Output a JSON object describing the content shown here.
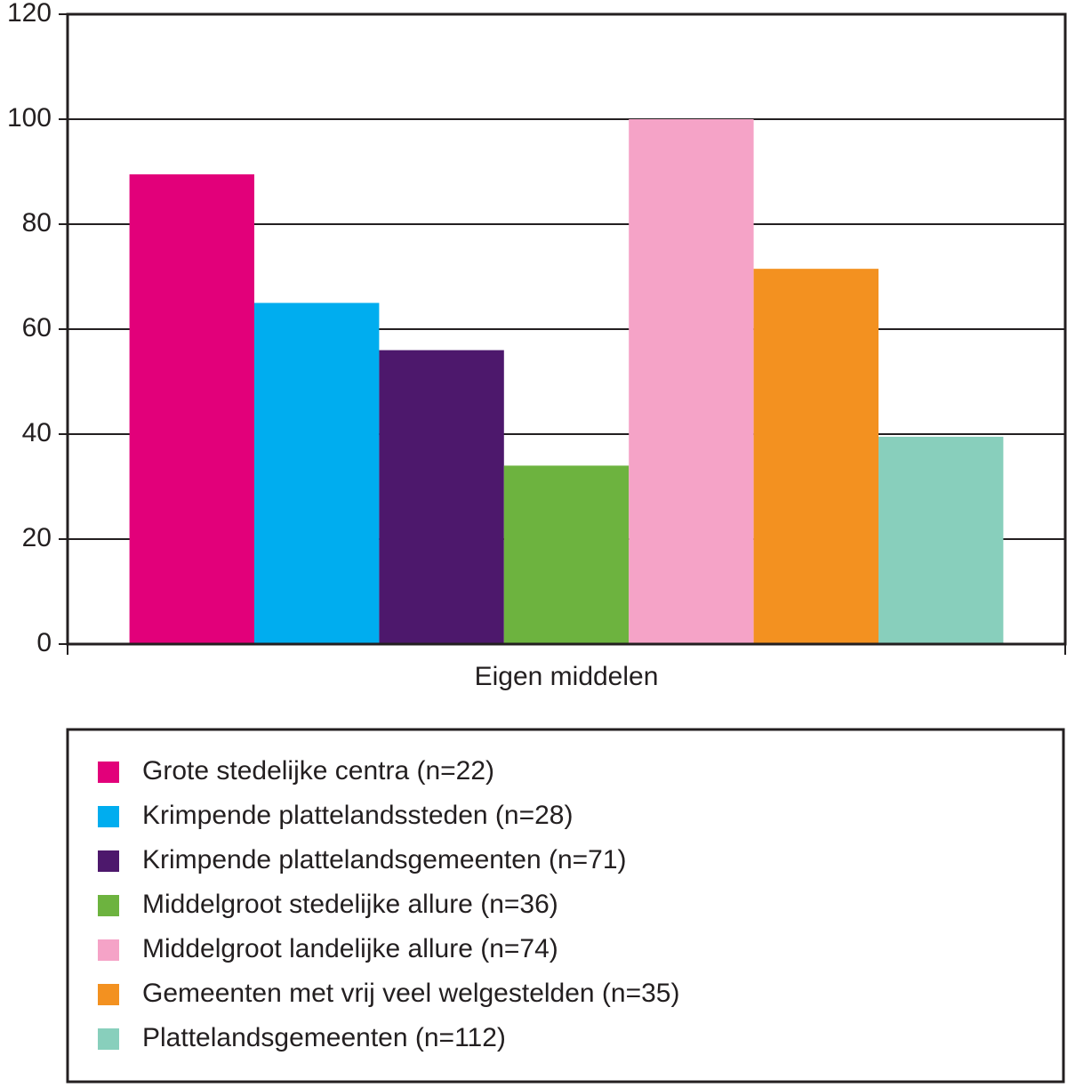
{
  "chart_data": {
    "type": "bar",
    "categories": [
      "Eigen middelen"
    ],
    "series": [
      {
        "name": "Grote stedelijke centra (n=22)",
        "color": "#e2007a",
        "values": [
          89.5
        ]
      },
      {
        "name": "Krimpende plattelandssteden (n=28)",
        "color": "#00adef",
        "values": [
          65
        ]
      },
      {
        "name": "Krimpende plattelandsgemeenten (n=71)",
        "color": "#4d186c",
        "values": [
          56
        ]
      },
      {
        "name": "Middelgroot stedelijke allure (n=36)",
        "color": "#6db33f",
        "values": [
          34
        ]
      },
      {
        "name": "Middelgroot landelijke allure (n=74)",
        "color": "#f5a3c7",
        "values": [
          100
        ]
      },
      {
        "name": "Gemeenten met vrij veel welgestelden (n=35)",
        "color": "#f39120",
        "values": [
          71.5
        ]
      },
      {
        "name": "Plattelandsgemeenten (n=112)",
        "color": "#88cfbc",
        "values": [
          39.5
        ]
      }
    ],
    "ylim": [
      0,
      120
    ],
    "yticks": [
      0,
      20,
      40,
      60,
      80,
      100,
      120
    ],
    "grid": true,
    "legend": "bottom"
  }
}
